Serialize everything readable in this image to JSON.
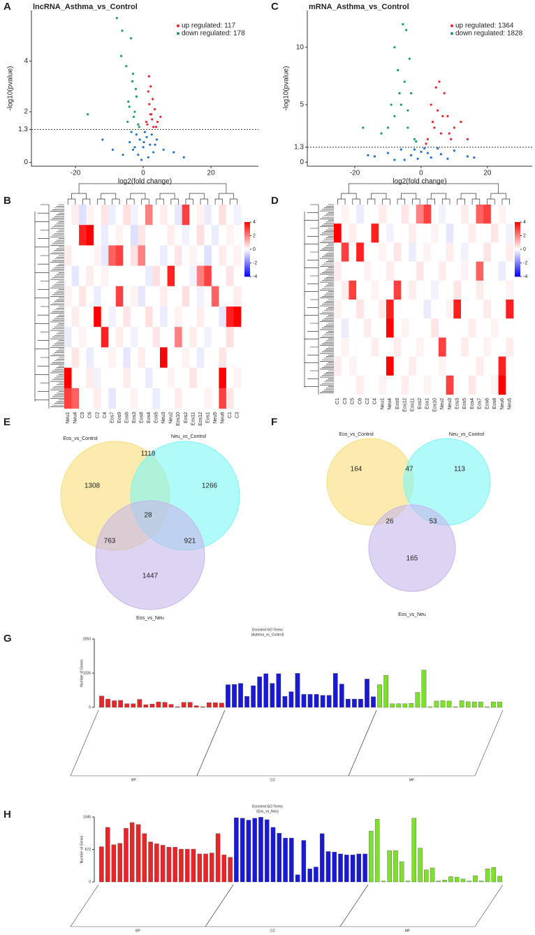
{
  "chart_data": [
    {
      "type": "scatter",
      "panel": "A",
      "title": "lncRNA_Asthma_vs_Control",
      "xlabel": "log2(fold change)",
      "ylabel": "-log10(pvalue)",
      "xlim": [
        -33,
        34
      ],
      "ylim": [
        -0.15,
        6
      ],
      "xticks": [
        -20,
        0,
        20
      ],
      "yticks": [
        0,
        1.3,
        2,
        4
      ],
      "threshold": 1.3,
      "legend": "top right",
      "series": [
        {
          "name": "up regulated: 117",
          "color": "#e8262a",
          "x": [
            1.2,
            2.1,
            3.0,
            1.8,
            2.6,
            4.2,
            1.5,
            3.4,
            2.2,
            0.9,
            5.1,
            2.8,
            1.7,
            3.8,
            2.4
          ],
          "values": [
            1.5,
            1.9,
            1.4,
            2.3,
            1.7,
            1.6,
            2.8,
            2.1,
            3.0,
            1.6,
            1.8,
            2.5,
            3.4,
            1.4,
            1.9
          ]
        },
        {
          "name": "down regulated: 178",
          "color": "#1a9e5c",
          "x": [
            -1.5,
            -2.8,
            -4.1,
            -3.2,
            -2.0,
            -6.5,
            -5.0,
            -3.6,
            -1.2,
            -2.5,
            -7.8,
            -4.6,
            -16.4,
            -3.0,
            -2.2,
            -6.2,
            -4.4
          ],
          "values": [
            1.5,
            1.8,
            2.2,
            3.2,
            2.6,
            4.2,
            3.8,
            4.9,
            1.4,
            2.0,
            5.7,
            1.6,
            1.9,
            3.5,
            2.9,
            5.2,
            2.4
          ]
        },
        {
          "color": "#1f6fd6",
          "x": [
            -6,
            -4,
            -3,
            -2,
            -1,
            0,
            1,
            2,
            3,
            4,
            6,
            -1.5,
            0.5,
            1.5,
            -2.5,
            2.5,
            9,
            -9,
            -12,
            12,
            -0.5,
            0.2,
            -3.5,
            3.5
          ],
          "values": [
            0.3,
            0.8,
            0.5,
            1.1,
            0.9,
            0.6,
            1.0,
            0.7,
            0.4,
            0.9,
            0.5,
            0.3,
            1.2,
            0.2,
            0.6,
            1.1,
            0.4,
            0.5,
            0.9,
            0.2,
            0.1,
            0.8,
            1.2,
            0.7
          ]
        }
      ]
    },
    {
      "type": "heatmap",
      "panel": "B",
      "zlim": [
        -4,
        4
      ],
      "colorbar_ticks": [
        4,
        2,
        0,
        -2,
        -4
      ],
      "columns": [
        "Neu1",
        "Neu4",
        "C5",
        "C6",
        "C2",
        "C4",
        "Eos7",
        "Eos9",
        "Eos6",
        "Eos3",
        "Eos8",
        "Eos4",
        "Eos5",
        "Neu3",
        "Neu2",
        "Eos10",
        "Eos2",
        "Eos11",
        "Eos12",
        "Eos1",
        "Neu5",
        "Neu6",
        "C1",
        "C3"
      ],
      "values": [
        [
          0,
          0.3,
          -0.5,
          0.2,
          0,
          0.4,
          -0.3,
          0,
          0.5,
          -0.2,
          0,
          2,
          0,
          0.3,
          0,
          -0.4,
          3,
          0,
          0.2,
          -0.3,
          0,
          0.5,
          0,
          -0.2
        ],
        [
          0,
          0,
          3.5,
          4,
          0,
          -0.3,
          0,
          0.2,
          0,
          -0.5,
          0.4,
          0,
          0,
          0,
          0.3,
          0,
          -0.2,
          0,
          0.5,
          0,
          -0.3,
          0,
          0.2,
          0
        ],
        [
          0.3,
          0,
          0,
          0,
          0.2,
          -0.4,
          2.5,
          3,
          0,
          0.5,
          2,
          0,
          0,
          -0.3,
          0,
          0.4,
          0,
          0.2,
          0,
          -0.5,
          0,
          0.3,
          0,
          0.2
        ],
        [
          0,
          -0.4,
          0,
          0.3,
          0,
          0.2,
          0,
          0,
          0,
          0,
          0,
          -0.3,
          0.5,
          0,
          3.5,
          0,
          0,
          -0.2,
          2,
          3,
          0,
          0,
          0.4,
          0
        ],
        [
          0.2,
          0,
          0.4,
          0,
          -0.3,
          0,
          0,
          3,
          0,
          0.2,
          -0.4,
          0,
          0,
          0.3,
          0,
          0,
          0.5,
          0,
          -0.2,
          0,
          2.5,
          0,
          0,
          0.3
        ],
        [
          0,
          0.3,
          0,
          0,
          4,
          0,
          -0.2,
          0,
          0.4,
          0,
          0,
          0.5,
          0,
          -0.3,
          0,
          0.2,
          0,
          0,
          0.3,
          0,
          0,
          -0.4,
          3.5,
          4
        ],
        [
          -0.3,
          0,
          0.2,
          0,
          0,
          3.5,
          0,
          0.3,
          0,
          -0.2,
          0,
          0,
          0.4,
          0,
          0,
          2,
          0,
          0.3,
          0,
          -0.2,
          0,
          0,
          0.5,
          0
        ],
        [
          0,
          0.4,
          0,
          -0.3,
          0,
          0,
          0.2,
          0,
          -0.4,
          0,
          0.3,
          0,
          0,
          4,
          0,
          0,
          0.2,
          0,
          -0.3,
          0,
          0,
          0.4,
          0,
          0
        ],
        [
          4,
          0,
          0,
          0.3,
          -0.2,
          0,
          0,
          0,
          0.3,
          0,
          0,
          -0.3,
          0,
          0,
          0.2,
          0,
          0,
          0.4,
          0,
          0,
          0,
          4,
          0,
          0.2
        ],
        [
          3,
          2.5,
          0,
          0,
          0.3,
          0,
          -0.4,
          0,
          0,
          0.2,
          0,
          0,
          -0.3,
          0,
          0,
          0.3,
          0,
          0,
          0,
          0.2,
          0,
          3,
          0.4,
          0
        ]
      ]
    },
    {
      "type": "scatter",
      "panel": "C",
      "title": "mRNA_Asthma_vs_Control",
      "xlabel": "log2(fold change)",
      "ylabel": "-log10(pvalue)",
      "xlim": [
        -34.3,
        33.5
      ],
      "ylim": [
        -0.35,
        13.2
      ],
      "xticks": [
        -20,
        0,
        20
      ],
      "yticks": [
        0,
        1.3,
        5,
        10
      ],
      "threshold": 1.3,
      "legend": "top right",
      "series": [
        {
          "name": "up regulated: 1364",
          "color": "#e8262a",
          "x": [
            2,
            4,
            6,
            8,
            10,
            3,
            5,
            7,
            9,
            12,
            1.5,
            4.5,
            6.5,
            14,
            5.5,
            8.5,
            3.5
          ],
          "values": [
            2,
            3,
            2.5,
            4,
            3,
            5,
            4.5,
            6,
            2,
            3.5,
            1.6,
            6.5,
            4,
            2,
            7,
            2.5,
            3.5
          ]
        },
        {
          "name": "down regulated: 1828",
          "color": "#1a9e5c",
          "x": [
            -2,
            -4,
            -6,
            -8,
            -10,
            -3,
            -5,
            -7,
            -9,
            -12,
            -4.5,
            -3.5,
            -5.5,
            -8,
            -17.5,
            -6.5,
            -4,
            -1.5
          ],
          "values": [
            2,
            3,
            5,
            4,
            3,
            6,
            7,
            8,
            5,
            2.5,
            11.5,
            9,
            12,
            10,
            3,
            6,
            4.5,
            1.8
          ]
        },
        {
          "color": "#1f6fd6",
          "x": [
            -14,
            -10,
            -6,
            -3,
            -1,
            0,
            1,
            3,
            6,
            10,
            14,
            -8,
            8,
            -2,
            2,
            16,
            -16,
            5,
            -5
          ],
          "values": [
            0.5,
            0.8,
            1.1,
            0.6,
            0.3,
            0.9,
            1.2,
            0.4,
            0.7,
            1.0,
            0.5,
            0.2,
            0.3,
            1.1,
            0.8,
            0.4,
            0.6,
            1.2,
            0.2
          ]
        }
      ]
    },
    {
      "type": "heatmap",
      "panel": "D",
      "zlim": [
        -4,
        4
      ],
      "colorbar_ticks": [
        4,
        2,
        0,
        -2,
        -4
      ],
      "columns": [
        "C1",
        "C3",
        "C5",
        "C6",
        "C2",
        "C4",
        "Neu1",
        "Neu4",
        "Eos9",
        "Eos12",
        "Eos11",
        "Eos2",
        "Eos1",
        "Eos10",
        "Neu2",
        "Neu3",
        "Eos3",
        "Eos5",
        "Eos4",
        "Eos7",
        "Eos6",
        "Eos8",
        "Neu6",
        "Neu5"
      ],
      "values": [
        [
          0,
          0.2,
          0,
          -0.3,
          0,
          0,
          0.3,
          0,
          0,
          0.4,
          0,
          2,
          3,
          0,
          -0.2,
          0,
          0,
          0.3,
          0,
          2.5,
          3,
          0,
          0.2,
          0
        ],
        [
          4,
          0,
          0.3,
          0,
          0,
          3.5,
          0,
          -0.2,
          0,
          0,
          0.3,
          0,
          0,
          0.2,
          0,
          -0.4,
          0,
          0,
          0.3,
          0,
          0,
          0.4,
          0,
          -0.2
        ],
        [
          0,
          3,
          0,
          3.5,
          0,
          0,
          0.2,
          0,
          0.4,
          0,
          -0.3,
          0,
          0.2,
          0,
          0,
          0.3,
          0,
          -0.2,
          0,
          0,
          0.4,
          0,
          0,
          0.3
        ],
        [
          0.3,
          0,
          0,
          0,
          0.2,
          0,
          0,
          0.3,
          0,
          0,
          0,
          0.4,
          0,
          0,
          0.3,
          0,
          0,
          0.2,
          0,
          2.5,
          0,
          0,
          -0.3,
          0
        ],
        [
          0,
          0.3,
          3,
          0,
          0,
          0.2,
          0,
          0,
          3,
          0,
          0.3,
          0,
          0,
          -0.2,
          0,
          0,
          0.4,
          0,
          0,
          0.3,
          0,
          0,
          0,
          0.2
        ],
        [
          0.2,
          0,
          0,
          0.4,
          0,
          0,
          0.3,
          3.5,
          0,
          0,
          0,
          0,
          -0.3,
          0,
          0,
          0.2,
          3.5,
          0,
          0,
          0,
          0.3,
          0,
          0,
          3.5
        ],
        [
          0,
          -0.3,
          0,
          0,
          0.3,
          0,
          0,
          4,
          0,
          0.2,
          0,
          0,
          0,
          0.4,
          0,
          0,
          0,
          0,
          0.3,
          0,
          0,
          0.2,
          0,
          0
        ],
        [
          0,
          0.2,
          0,
          0,
          0,
          0.3,
          0,
          0,
          0.3,
          0,
          0,
          0.2,
          0,
          0,
          3,
          0,
          0,
          0.3,
          0,
          0,
          0.2,
          0,
          0,
          0.3
        ],
        [
          0.3,
          0,
          0.2,
          0,
          0,
          0,
          0,
          4,
          0,
          0,
          0.3,
          0,
          0,
          0,
          0.2,
          0,
          0,
          0,
          0,
          0.3,
          0,
          0,
          3.5,
          0
        ],
        [
          0,
          0,
          0,
          0.3,
          0,
          0,
          0.2,
          0,
          0,
          0.3,
          0,
          0,
          0.2,
          0,
          0,
          3,
          0,
          0,
          0.4,
          0,
          0,
          0.2,
          4,
          0
        ]
      ]
    },
    {
      "type": "venn",
      "panel": "E",
      "sets": [
        "Eos_vs_Control",
        "Neu_vs_Control",
        "Eos_vs_Neu"
      ],
      "colors": [
        "#f9de79",
        "#7df6f6",
        "#c7b6ea"
      ],
      "values": [
        1308,
        1118,
        1266,
        28,
        763,
        921,
        1447
      ]
    },
    {
      "type": "venn",
      "panel": "F",
      "sets": [
        "Eos_vs_Control",
        "Neu_vs_Control",
        "Eos_vs_Neu"
      ],
      "colors": [
        "#f9de79",
        "#7df6f6",
        "#c7b6ea"
      ],
      "values": [
        164,
        47,
        113,
        26,
        53,
        165
      ]
    },
    {
      "type": "bar",
      "panel": "G",
      "title": "Enriched GO Terms",
      "subtitle": "(Asthma_vs_Control)",
      "ylabel": "Number of Genes",
      "ylim": [
        0,
        2053
      ],
      "yticks": [
        0,
        1026,
        2053
      ],
      "groups": [
        {
          "name": "BP",
          "color": "#e8262a",
          "values": [
            340,
            250,
            200,
            210,
            110,
            110,
            240,
            80,
            100,
            160,
            150,
            90,
            20,
            150,
            150,
            50,
            20,
            140,
            140,
            130
          ]
        },
        {
          "name": "CC",
          "color": "#1a1ad6",
          "values": [
            680,
            690,
            720,
            330,
            650,
            920,
            1010,
            720,
            1010,
            330,
            470,
            1020,
            390,
            390,
            390,
            360,
            360,
            1020,
            700,
            250,
            250,
            250,
            850,
            320
          ]
        },
        {
          "name": "MF",
          "color": "#7ee02a",
          "values": [
            680,
            960,
            110,
            110,
            110,
            120,
            450,
            1120,
            20,
            190,
            200,
            190,
            20,
            200,
            170,
            160,
            160,
            20,
            160,
            160
          ]
        }
      ]
    },
    {
      "type": "bar",
      "panel": "H",
      "title": "Enriched GO Terms",
      "subtitle": "(Eos_vs_Neu)",
      "ylabel": "Number of Genes",
      "ylim": [
        0,
        1345
      ],
      "yticks": [
        0,
        672,
        1345
      ],
      "groups": [
        {
          "name": "BP",
          "color": "#e8262a",
          "values": [
            730,
            1130,
            770,
            800,
            1110,
            1230,
            1190,
            1000,
            830,
            790,
            760,
            720,
            720,
            680,
            680,
            680,
            580,
            580,
            600,
            1000,
            560,
            510
          ]
        },
        {
          "name": "CC",
          "color": "#1a1ad6",
          "values": [
            1330,
            1320,
            1280,
            1320,
            1340,
            1290,
            1130,
            1010,
            910,
            910,
            150,
            860,
            270,
            310,
            1000,
            630,
            620,
            580,
            560,
            560,
            580,
            580
          ]
        },
        {
          "name": "MF",
          "color": "#7ee02a",
          "values": [
            1050,
            1300,
            20,
            650,
            650,
            420,
            20,
            1320,
            700,
            250,
            290,
            20,
            40,
            110,
            100,
            60,
            20,
            130,
            20,
            270,
            300,
            120
          ]
        }
      ]
    }
  ]
}
